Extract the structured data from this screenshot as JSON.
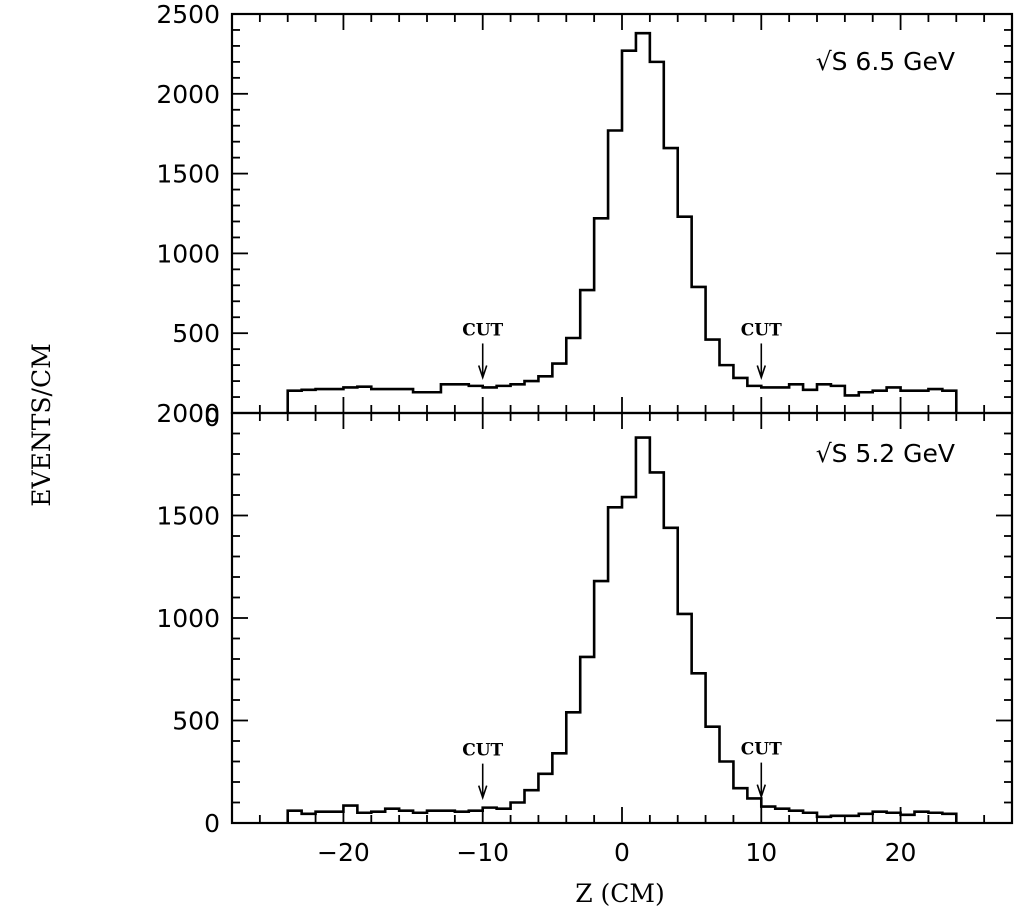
{
  "chart_data": [
    {
      "type": "histogram",
      "panel": "top",
      "annotation": "√S 6.5 GeV",
      "xlabel": "Z (CM)",
      "ylabel": "EVENTS/CM",
      "xlim": [
        -28,
        28
      ],
      "ylim": [
        0,
        2500
      ],
      "yticks": [
        0,
        500,
        1000,
        1500,
        2000,
        2500
      ],
      "xticks": [
        -20,
        -10,
        0,
        10,
        20
      ],
      "bin_width": 1,
      "x": [
        -24,
        -23,
        -22,
        -21,
        -20,
        -19,
        -18,
        -17,
        -16,
        -15,
        -14,
        -13,
        -12,
        -11,
        -10,
        -9,
        -8,
        -7,
        -6,
        -5,
        -4,
        -3,
        -2,
        -1,
        0,
        1,
        2,
        3,
        4,
        5,
        6,
        7,
        8,
        9,
        10,
        11,
        12,
        13,
        14,
        15,
        16,
        17,
        18,
        19,
        20,
        21,
        22,
        23
      ],
      "values": [
        140,
        145,
        150,
        150,
        160,
        165,
        150,
        150,
        150,
        130,
        130,
        180,
        180,
        170,
        160,
        170,
        180,
        200,
        230,
        310,
        470,
        770,
        1220,
        1770,
        2270,
        2380,
        2200,
        1660,
        1230,
        790,
        460,
        300,
        220,
        170,
        160,
        160,
        180,
        145,
        180,
        170,
        110,
        130,
        140,
        160,
        140,
        140,
        150,
        140
      ],
      "cuts": [
        {
          "x": -10,
          "label": "CUT"
        },
        {
          "x": 10,
          "label": "CUT"
        }
      ]
    },
    {
      "type": "histogram",
      "panel": "bottom",
      "annotation": "√S 5.2 GeV",
      "xlabel": "Z (CM)",
      "ylabel": "EVENTS/CM",
      "xlim": [
        -28,
        28
      ],
      "ylim": [
        0,
        2000
      ],
      "yticks": [
        0,
        500,
        1000,
        1500,
        2000
      ],
      "xticks": [
        -20,
        -10,
        0,
        10,
        20
      ],
      "xticklabels": [
        "−20",
        "−10",
        "0",
        "10",
        "20"
      ],
      "bin_width": 1,
      "x": [
        -24,
        -23,
        -22,
        -21,
        -20,
        -19,
        -18,
        -17,
        -16,
        -15,
        -14,
        -13,
        -12,
        -11,
        -10,
        -9,
        -8,
        -7,
        -6,
        -5,
        -4,
        -3,
        -2,
        -1,
        0,
        1,
        2,
        3,
        4,
        5,
        6,
        7,
        8,
        9,
        10,
        11,
        12,
        13,
        14,
        15,
        16,
        17,
        18,
        19,
        20,
        21,
        22,
        23
      ],
      "values": [
        60,
        45,
        55,
        55,
        85,
        50,
        55,
        70,
        60,
        50,
        60,
        60,
        55,
        60,
        75,
        70,
        100,
        160,
        240,
        340,
        540,
        810,
        1180,
        1540,
        1590,
        1880,
        1710,
        1440,
        1020,
        730,
        470,
        300,
        170,
        120,
        80,
        70,
        60,
        50,
        30,
        35,
        35,
        45,
        55,
        50,
        40,
        55,
        50,
        45
      ],
      "cuts": [
        {
          "x": -10,
          "label": "CUT"
        },
        {
          "x": 10,
          "label": "CUT"
        }
      ]
    }
  ]
}
